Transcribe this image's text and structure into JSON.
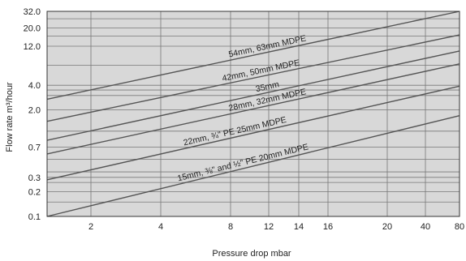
{
  "chart_data": {
    "type": "line",
    "xlabel": "Pressure drop mbar",
    "ylabel": "Flow rate m³/hour",
    "x_ticks": [
      {
        "value": 2,
        "label": "2"
      },
      {
        "value": 4,
        "label": "4"
      },
      {
        "value": 8,
        "label": "8"
      },
      {
        "value": 12,
        "label": "12"
      },
      {
        "value": 14,
        "label": "14"
      },
      {
        "value": 16,
        "label": "16"
      },
      {
        "value": 20,
        "label": "20"
      },
      {
        "value": 40,
        "label": "40"
      },
      {
        "value": 80,
        "label": "80"
      }
    ],
    "y_ticks": [
      {
        "value": 0.1,
        "label": "0.1"
      },
      {
        "value": 0.2,
        "label": "0.2"
      },
      {
        "value": 0.3,
        "label": "0.3"
      },
      {
        "value": 0.7,
        "label": "0.7"
      },
      {
        "value": 2.0,
        "label": "2.0"
      },
      {
        "value": 4.0,
        "label": "4.0"
      },
      {
        "value": 12.0,
        "label": "12.0"
      },
      {
        "value": 20.0,
        "label": "20.0"
      },
      {
        "value": 32.0,
        "label": "32.0"
      }
    ],
    "y_gridlines": [
      0.1,
      0.15,
      0.2,
      0.26,
      0.3,
      0.35,
      0.5,
      0.7,
      1.1,
      2.0,
      3.0,
      3.5,
      4.0,
      7.0,
      12.0,
      16.0,
      20.0,
      26.0,
      32.0
    ],
    "grid": true,
    "series": [
      {
        "name": "54mm, 63mm MDPE",
        "x": [
          1,
          80
        ],
        "y": [
          2.7,
          32.0
        ]
      },
      {
        "name": "42mm, 50mm MDPE",
        "x": [
          1,
          80
        ],
        "y": [
          1.45,
          16.5
        ]
      },
      {
        "name": "35mm",
        "x": [
          1,
          80
        ],
        "y": [
          0.85,
          10.5
        ]
      },
      {
        "name": "28mm, 32mm MDPE",
        "x": [
          1,
          80
        ],
        "y": [
          0.58,
          7.3
        ]
      },
      {
        "name": "22mm, ¾\" PE 25mm MDPE",
        "x": [
          1,
          80
        ],
        "y": [
          0.28,
          3.9
        ]
      },
      {
        "name": "15mm, ⅜\" and ½\" PE 20mm MDPE",
        "x": [
          1,
          80
        ],
        "y": [
          0.1,
          1.7
        ]
      }
    ],
    "colors": {
      "plot_background": "#d8d8d8",
      "grid": "#777777",
      "line": "#555555"
    }
  }
}
